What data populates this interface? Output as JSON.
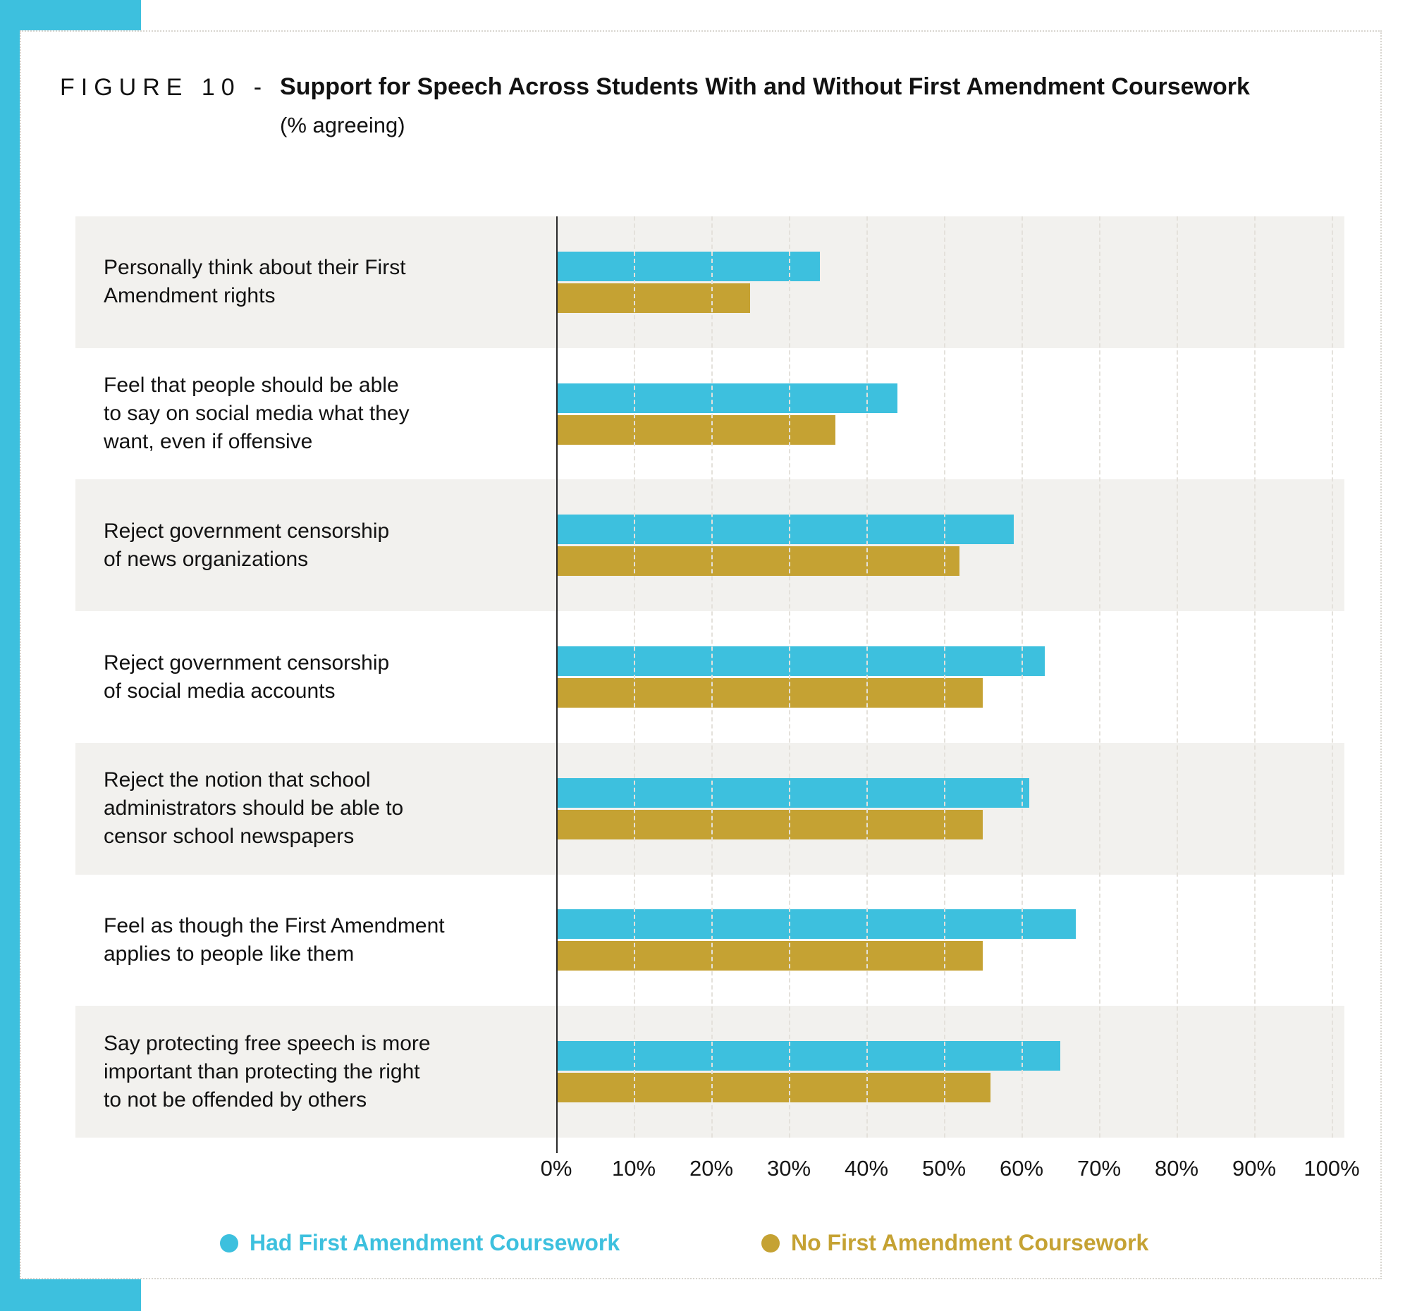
{
  "figure": {
    "label": "FIGURE 10",
    "separator": "-",
    "title": "Support for Speech Across Students With and Without First Amendment Coursework",
    "subtitle": "(% agreeing)"
  },
  "chart_data": {
    "type": "bar",
    "orientation": "horizontal",
    "title": "Support for Speech Across Students With and Without First Amendment Coursework (% agreeing)",
    "categories": [
      "Personally think about their First\nAmendment rights",
      "Feel that people should be able\nto say on social media what they\nwant, even if offensive",
      "Reject government censorship\nof news organizations",
      "Reject government censorship\nof social  media accounts",
      "Reject the notion that school\nadministrators should be able to\ncensor school newspapers",
      "Feel as though the First Amendment\napplies to people like them",
      "Say protecting free speech is more\nimportant than protecting the right\nto not be offended by others"
    ],
    "series": [
      {
        "name": "Had First Amendment Coursework",
        "color": "#3DC0DE",
        "values": [
          34,
          44,
          59,
          63,
          61,
          67,
          65
        ]
      },
      {
        "name": "No First Amendment Coursework",
        "color": "#C5A233",
        "values": [
          25,
          36,
          52,
          55,
          55,
          55,
          56
        ]
      }
    ],
    "xlim": [
      0,
      100
    ],
    "x_ticks": [
      "0%",
      "10%",
      "20%",
      "30%",
      "40%",
      "50%",
      "60%",
      "70%",
      "80%",
      "90%",
      "100%"
    ],
    "grid": "vertical-dashed",
    "row_stripe_color": "#F2F1EE",
    "legend_position": "bottom"
  },
  "legend": {
    "items": [
      {
        "label": "Had First Amendment Coursework",
        "color": "#3DC0DE"
      },
      {
        "label": "No First Amendment Coursework",
        "color": "#C5A233"
      }
    ]
  },
  "accent_color": "#3DC0DE"
}
